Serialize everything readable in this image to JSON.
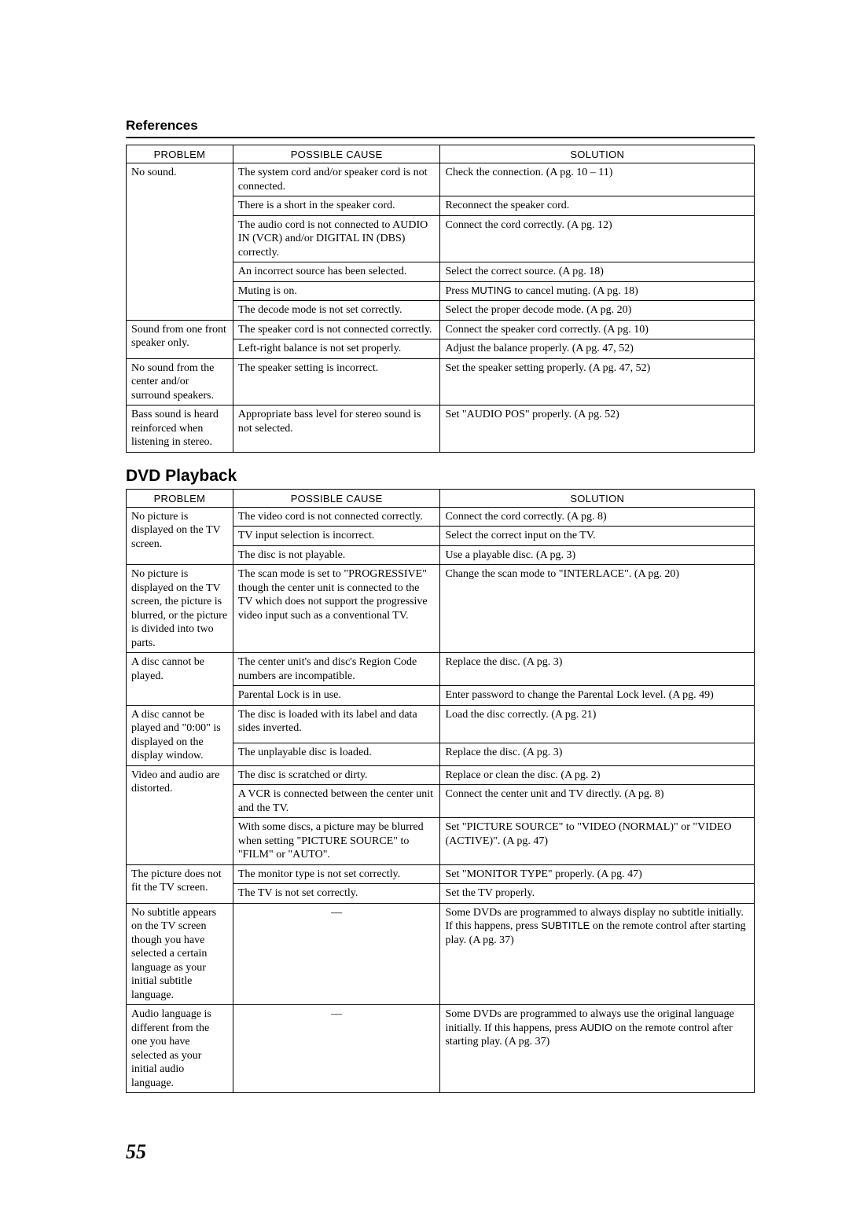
{
  "headings": {
    "references": "References",
    "dvd": "DVD Playback"
  },
  "columns": {
    "problem": "PROBLEM",
    "cause": "POSSIBLE CAUSE",
    "solution": "SOLUTION"
  },
  "ref_table": {
    "r1": {
      "problem": "No sound.",
      "cause": "The system cord and/or speaker cord is not connected.",
      "solution": "Check the connection. (A  pg. 10 – 11)"
    },
    "r2": {
      "cause": "There is a short in the speaker cord.",
      "solution": "Reconnect the speaker cord."
    },
    "r3": {
      "cause": "The audio cord is not connected to AUDIO IN (VCR) and/or DIGITAL IN (DBS) correctly.",
      "solution": "Connect the cord correctly. (A  pg. 12)"
    },
    "r4": {
      "cause": "An incorrect source has been selected.",
      "solution": "Select the correct source. (A  pg. 18)"
    },
    "r5": {
      "cause": "Muting is on.",
      "solution_a": "Press ",
      "muting": "MUTING",
      "solution_b": " to cancel muting. (A  pg. 18)"
    },
    "r6": {
      "cause": "The decode mode is not set correctly.",
      "solution": "Select the proper decode mode. (A  pg. 20)"
    },
    "r7": {
      "problem": "Sound from one front speaker only.",
      "cause": "The speaker cord is not connected correctly.",
      "solution": "Connect the speaker cord correctly. (A  pg. 10)"
    },
    "r8": {
      "cause": "Left-right balance is not set properly.",
      "solution": "Adjust the balance properly. (A  pg. 47,  52)"
    },
    "r9": {
      "problem": "No sound from the center and/or surround speakers.",
      "cause": "The speaker setting is incorrect.",
      "solution": "Set the speaker setting properly. (A  pg. 47,  52)"
    },
    "r10": {
      "problem": "Bass sound is heard reinforced when listening in stereo.",
      "cause": "Appropriate bass level for stereo sound is not selected.",
      "solution": "Set \"AUDIO POS\" properly. (A  pg. 52)"
    }
  },
  "dvd_table": {
    "d1": {
      "problem": "No picture is displayed on the TV screen.",
      "cause": "The video cord is not connected correctly.",
      "solution": "Connect the cord correctly. (A  pg. 8)"
    },
    "d2": {
      "cause": "TV input selection is incorrect.",
      "solution": "Select the correct input on the TV."
    },
    "d3": {
      "cause": "The disc is not playable.",
      "solution": "Use a playable disc. (A  pg. 3)"
    },
    "d4": {
      "problem": "No picture is displayed on the TV screen, the picture is blurred, or the picture is divided into two parts.",
      "cause": "The scan mode is set to \"PROGRESSIVE\" though the center unit is connected to the TV which does not support the progressive video input such as a conventional TV.",
      "solution": "Change the scan mode to \"INTERLACE\". (A  pg. 20)"
    },
    "d5": {
      "problem": "A disc cannot be played.",
      "cause": "The center unit's and disc's Region Code numbers are incompatible.",
      "solution": "Replace the disc. (A  pg. 3)"
    },
    "d6": {
      "cause": "Parental Lock is in use.",
      "solution": "Enter password to change the Parental Lock level. (A  pg. 49)"
    },
    "d7": {
      "problem": "A disc cannot be played and \"0:00\" is displayed on the display window.",
      "cause": "The disc is loaded with its label and data sides inverted.",
      "solution": "Load the disc correctly. (A  pg. 21)"
    },
    "d8": {
      "cause": "The unplayable disc is loaded.",
      "solution": "Replace the disc. (A  pg. 3)"
    },
    "d9": {
      "problem": "Video and audio are distorted.",
      "cause": "The disc is scratched or dirty.",
      "solution": "Replace or clean the disc. (A  pg. 2)"
    },
    "d10": {
      "cause": "A VCR is connected between the center unit and the TV.",
      "solution": "Connect the center unit and TV directly. (A  pg. 8)"
    },
    "d11": {
      "cause": "With some discs, a picture may be blurred when setting \"PICTURE SOURCE\" to \"FILM\" or \"AUTO\".",
      "solution": "Set \"PICTURE SOURCE\" to \"VIDEO (NORMAL)\" or \"VIDEO (ACTIVE)\". (A  pg. 47)"
    },
    "d12": {
      "problem": "The picture does not fit the TV screen.",
      "cause": "The monitor type is not set correctly.",
      "solution": "Set \"MONITOR TYPE\" properly. (A  pg. 47)"
    },
    "d13": {
      "cause": "The TV is not set correctly.",
      "solution": "Set the TV properly."
    },
    "d14": {
      "problem": "No subtitle appears on the TV screen though you have selected a certain language as your initial subtitle language.",
      "cause": "—",
      "solution_a": "Some DVDs are programmed to always display no subtitle initially. If this happens, press ",
      "subtitle": "SUBTITLE",
      "solution_b": " on the remote control after starting play. (A  pg. 37)"
    },
    "d15": {
      "problem": "Audio language is different from the one you have selected as your initial audio language.",
      "cause": "—",
      "solution_a": "Some DVDs are programmed to always use the original language initially. If this happens, press ",
      "audio": "AUDIO",
      "solution_b": " on the remote control after starting play. (A  pg. 37)"
    }
  },
  "page_number": "55"
}
